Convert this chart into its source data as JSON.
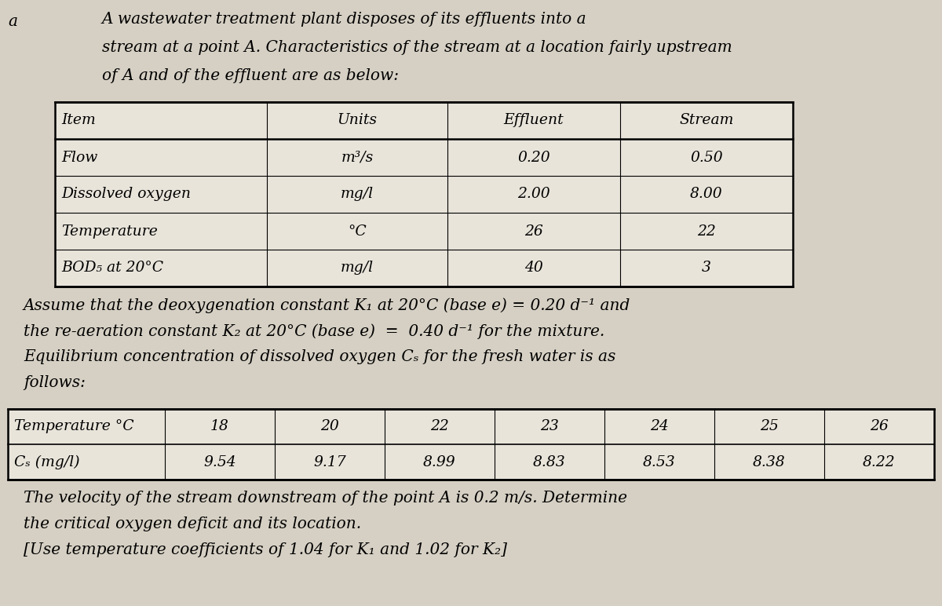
{
  "bg_color": "#d6d0c4",
  "table_bg": "#e8e4da",
  "intro_lines": [
    "A wastewater treatment plant disposes of its effluents into a",
    "stream at a point A. Characteristics of the stream at a location fairly upstream",
    "of A and of the effluent are as below:"
  ],
  "t1_headers": [
    "Item",
    "Units",
    "Effluent",
    "Stream"
  ],
  "t1_rows": [
    [
      "Flow",
      "m³/s",
      "0.20",
      "0.50"
    ],
    [
      "Dissolved oxygen",
      "mg/l",
      "2.00",
      "8.00"
    ],
    [
      "Temperature",
      "°C",
      "26",
      "22"
    ],
    [
      "BOD₅ at 20°C",
      "mg/l",
      "40",
      "3"
    ]
  ],
  "mid_lines": [
    "Assume that the deoxygenation constant K₁ at 20°C (base e) = 0.20 d⁻¹ and",
    "the re-aeration constant K₂ at 20°C (base e)  =  0.40 d⁻¹ for the mixture.",
    "Equilibrium concentration of dissolved oxygen Cₛ for the fresh water is as",
    "follows:"
  ],
  "t2_headers": [
    "Temperature °C",
    "18",
    "20",
    "22",
    "23",
    "24",
    "25",
    "26"
  ],
  "t2_row": [
    "Cₛ (mg/l)",
    "9.54",
    "9.17",
    "8.99",
    "8.83",
    "8.53",
    "8.38",
    "8.22"
  ],
  "bot_lines": [
    "The velocity of the stream downstream of the point A is 0.2 m/s. Determine",
    "the critical oxygen deficit and its location.",
    "[Use temperature coefficients of 1.04 for K₁ and 1.02 for K₂]"
  ],
  "fs_body": 14.5,
  "fs_table": 13.5
}
